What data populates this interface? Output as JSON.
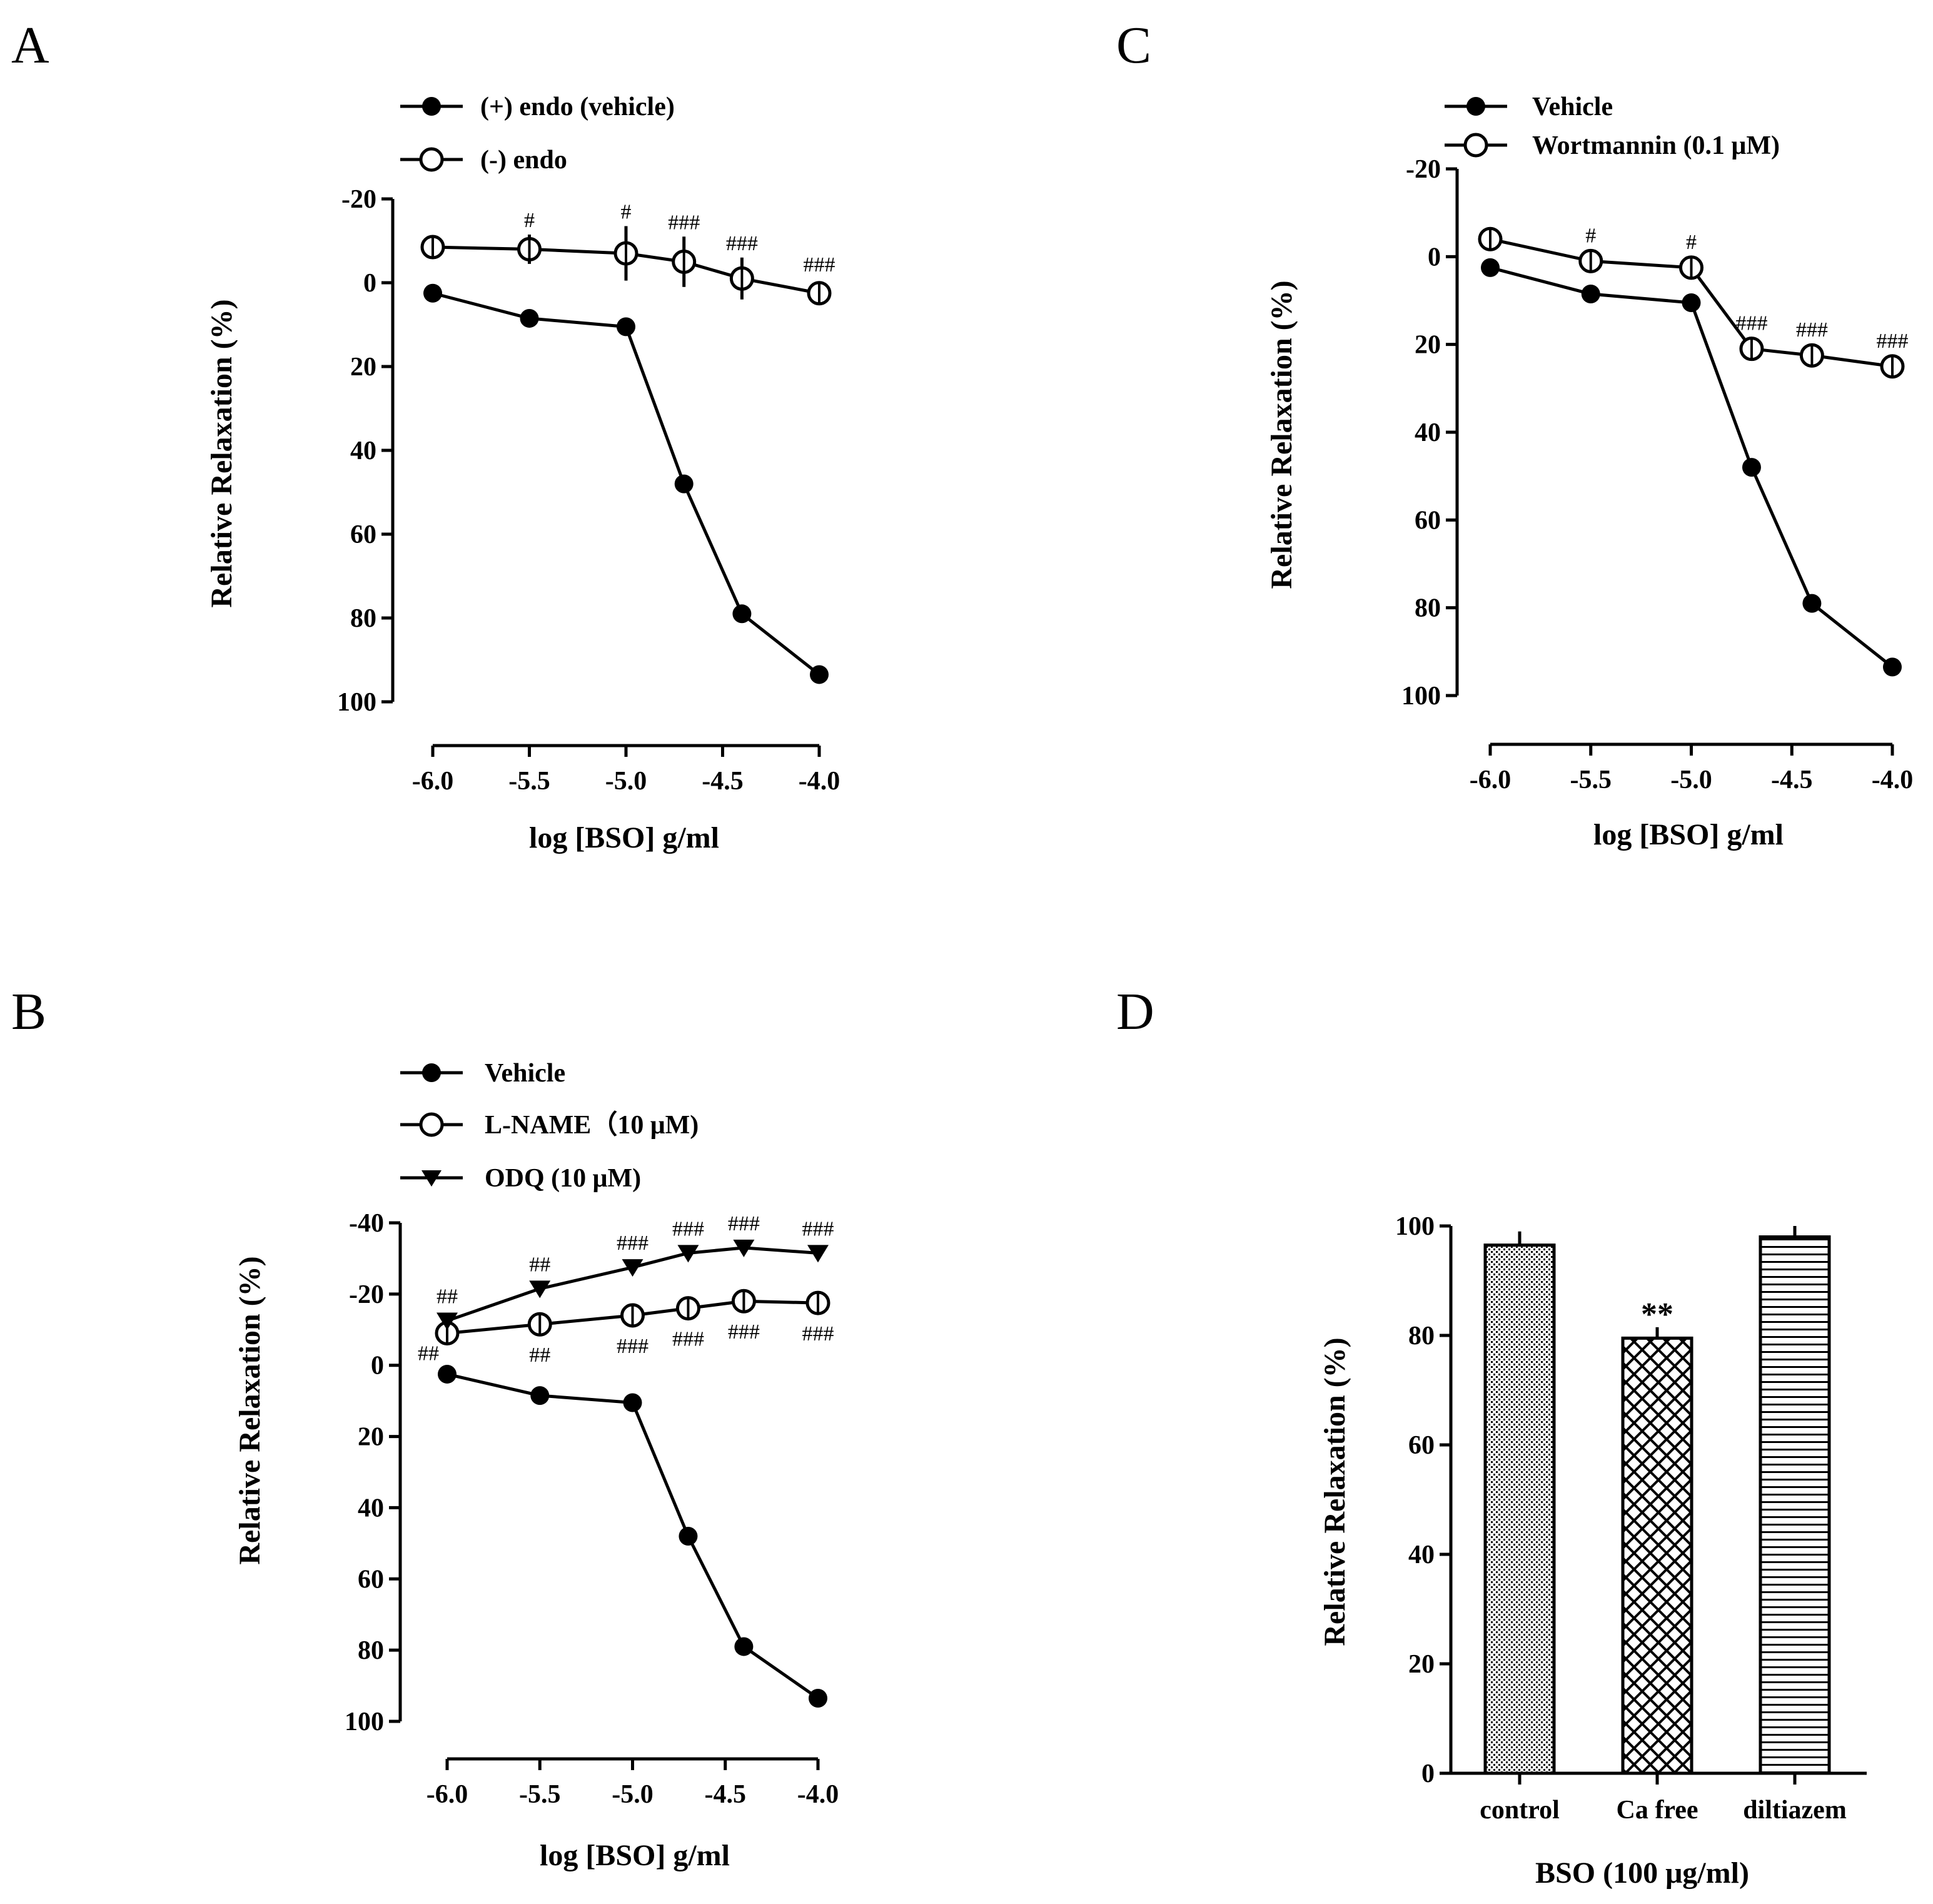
{
  "chart_data": [
    {
      "panel": "A",
      "type": "line",
      "x": [
        -6.0,
        -5.5,
        -5.0,
        -4.7,
        -4.4,
        -4.0
      ],
      "xticks": [
        "-6.0",
        "-5.5",
        "-5.0",
        "-4.5",
        "-4.0"
      ],
      "xtick_values": [
        -6.0,
        -5.5,
        -5.0,
        -4.5,
        -4.0
      ],
      "yticks": [
        "-20",
        "0",
        "20",
        "40",
        "60",
        "80",
        "100"
      ],
      "ytick_values": [
        -20,
        0,
        20,
        40,
        60,
        80,
        100
      ],
      "xlim": [
        -6.0,
        -4.0
      ],
      "ylim": [
        -20,
        100
      ],
      "y_inverted": true,
      "xlabel": "log [BSO] g/ml",
      "ylabel": "Relative Relaxation (%)",
      "series": [
        {
          "name": "(+) endo (vehicle)",
          "marker": "filled-circle",
          "values": [
            2.5,
            8.5,
            10.5,
            48,
            79,
            93.5
          ],
          "errors": [
            0,
            0,
            0,
            0,
            0,
            0
          ]
        },
        {
          "name": "(-) endo",
          "marker": "open-circle",
          "values": [
            -8.5,
            -8,
            -7,
            -5,
            -1,
            2.5
          ],
          "errors": [
            0,
            3.5,
            6.5,
            6,
            5,
            0
          ],
          "annotations": [
            "",
            "#",
            "#",
            "###",
            "###",
            "###"
          ]
        }
      ]
    },
    {
      "panel": "B",
      "type": "line",
      "x": [
        -6.0,
        -5.5,
        -5.0,
        -4.7,
        -4.4,
        -4.0
      ],
      "xticks": [
        "-6.0",
        "-5.5",
        "-5.0",
        "-4.5",
        "-4.0"
      ],
      "xtick_values": [
        -6.0,
        -5.5,
        -5.0,
        -4.5,
        -4.0
      ],
      "yticks": [
        "-40",
        "-20",
        "0",
        "20",
        "40",
        "60",
        "80",
        "100"
      ],
      "ytick_values": [
        -40,
        -20,
        0,
        20,
        40,
        60,
        80,
        100
      ],
      "xlim": [
        -6.0,
        -4.0
      ],
      "ylim": [
        -40,
        100
      ],
      "y_inverted": true,
      "xlabel": "log [BSO] g/ml",
      "ylabel": "Relative Relaxation (%)",
      "series": [
        {
          "name": "Vehicle",
          "marker": "filled-circle",
          "values": [
            2.5,
            8.5,
            10.5,
            48,
            79,
            93.5
          ],
          "errors": [
            0,
            0,
            0,
            0,
            0,
            0
          ]
        },
        {
          "name": "L-NAME（10 μM)",
          "marker": "open-circle",
          "values": [
            -9,
            -11.5,
            -14,
            -16,
            -18,
            -17.5
          ],
          "errors": [
            0,
            0,
            0,
            0,
            0,
            0
          ],
          "annotations": [
            "##",
            "##",
            "###",
            "###",
            "###",
            "###"
          ]
        },
        {
          "name": "ODQ (10 μM)",
          "marker": "filled-triangle-down",
          "values": [
            -12.5,
            -21.5,
            -27.5,
            -31.5,
            -33,
            -31.5
          ],
          "errors": [
            0,
            0,
            0,
            0,
            0,
            0
          ],
          "annotations": [
            "##",
            "##",
            "###",
            "###",
            "###",
            "###"
          ]
        }
      ]
    },
    {
      "panel": "C",
      "type": "line",
      "x": [
        -6.0,
        -5.5,
        -5.0,
        -4.7,
        -4.4,
        -4.0
      ],
      "xticks": [
        "-6.0",
        "-5.5",
        "-5.0",
        "-4.5",
        "-4.0"
      ],
      "xtick_values": [
        -6.0,
        -5.5,
        -5.0,
        -4.5,
        -4.0
      ],
      "yticks": [
        "-20",
        "0",
        "20",
        "40",
        "60",
        "80",
        "100"
      ],
      "ytick_values": [
        -20,
        0,
        20,
        40,
        60,
        80,
        100
      ],
      "xlim": [
        -6.0,
        -4.0
      ],
      "ylim": [
        -20,
        100
      ],
      "y_inverted": true,
      "xlabel": "log [BSO] g/ml",
      "ylabel": "Relative Relaxation (%)",
      "series": [
        {
          "name": "Vehicle",
          "marker": "filled-circle",
          "values": [
            2.5,
            8.5,
            10.5,
            48,
            79,
            93.5
          ],
          "errors": [
            0,
            0,
            0,
            0,
            0,
            0
          ]
        },
        {
          "name": "Wortmannin (0.1 μM)",
          "marker": "open-circle",
          "values": [
            -4,
            1,
            2.5,
            21,
            22.5,
            25
          ],
          "errors": [
            0,
            0,
            0,
            0,
            0,
            0
          ],
          "annotations": [
            "",
            "#",
            "#",
            "###",
            "###",
            "###"
          ]
        }
      ]
    },
    {
      "panel": "D",
      "type": "bar",
      "categories": [
        "control",
        "Ca free",
        "diltiazem"
      ],
      "values": [
        96.5,
        79.5,
        98
      ],
      "errors": [
        2.5,
        2,
        2
      ],
      "patterns": [
        "dots",
        "crosshatch",
        "horizontal"
      ],
      "annotations": [
        "",
        "**",
        ""
      ],
      "yticks": [
        "0",
        "20",
        "40",
        "60",
        "80",
        "100"
      ],
      "ytick_values": [
        0,
        20,
        40,
        60,
        80,
        100
      ],
      "ylim": [
        0,
        100
      ],
      "xlabel": "BSO (100 μg/ml)",
      "ylabel": "Relative Relaxation (%)"
    }
  ],
  "panel_letters": [
    "A",
    "B",
    "C",
    "D"
  ],
  "colors": {
    "ink": "#000000",
    "background": "#ffffff"
  }
}
